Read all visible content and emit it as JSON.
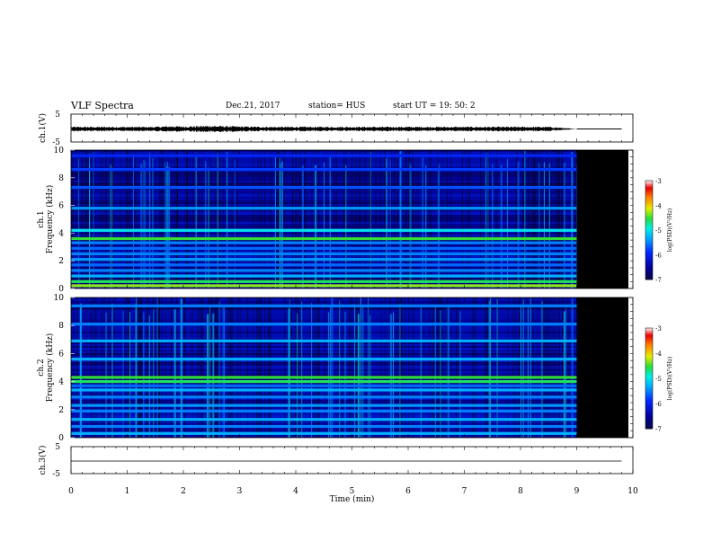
{
  "header": {
    "title": "VLF Spectra",
    "date": "Dec.21, 2017",
    "station": "station= HUS",
    "start": "start  UT =   19: 50: 2"
  },
  "chart_data": [
    {
      "type": "line",
      "panel": "ch1-waveform",
      "title": "",
      "xlabel": "",
      "ylabel": "ch.1(V)",
      "xlim": [
        0,
        10
      ],
      "ylim": [
        -5,
        5
      ],
      "yticks": [
        5,
        -5
      ],
      "series": [
        {
          "x": [
            0,
            0.5,
            1,
            1.5,
            1.8,
            2.0,
            2.3,
            2.5,
            3,
            3.5,
            4,
            4.5,
            5,
            5.5,
            6,
            6.5,
            7,
            7.5,
            8,
            8.5,
            9,
            9.8
          ],
          "amplitude": [
            0.6,
            0.6,
            0.6,
            0.6,
            0.8,
            0.7,
            0.8,
            0.9,
            0.7,
            0.6,
            0.6,
            0.6,
            0.6,
            0.6,
            0.6,
            0.6,
            0.6,
            0.6,
            0.6,
            0.6,
            0,
            0
          ]
        }
      ]
    },
    {
      "type": "heatmap",
      "panel": "ch1-spectrogram",
      "title": "",
      "xlabel": "",
      "ylabel": "ch.1 Frequency (kHz)",
      "xlim": [
        0,
        10
      ],
      "ylim": [
        0,
        10
      ],
      "yticks": [
        0,
        2,
        4,
        6,
        8,
        10
      ],
      "data_end_min": 9,
      "colorbar": {
        "label": "log(PSD)(V²/Hz)",
        "ticks": [
          -3,
          -4,
          -5,
          -6,
          -7
        ],
        "range": [
          -7,
          -3
        ]
      },
      "bands_khz": [
        {
          "f": 0.2,
          "level": -4.3
        },
        {
          "f": 0.5,
          "level": -4.6
        },
        {
          "f": 0.9,
          "level": -5.3
        },
        {
          "f": 1.3,
          "level": -5.5
        },
        {
          "f": 1.7,
          "level": -5.6
        },
        {
          "f": 2.1,
          "level": -5.4
        },
        {
          "f": 2.5,
          "level": -5.5
        },
        {
          "f": 2.9,
          "level": -5.6
        },
        {
          "f": 3.3,
          "level": -5.5
        },
        {
          "f": 3.6,
          "level": -4.5
        },
        {
          "f": 4.2,
          "level": -5.0
        },
        {
          "f": 5.8,
          "level": -5.4
        },
        {
          "f": 7.3,
          "level": -5.7
        },
        {
          "f": 8.6,
          "level": -5.8
        },
        {
          "f": 9.6,
          "level": -5.9
        }
      ]
    },
    {
      "type": "heatmap",
      "panel": "ch2-spectrogram",
      "title": "",
      "xlabel": "",
      "ylabel": "ch.2 Frequency (kHz)",
      "xlim": [
        0,
        10
      ],
      "ylim": [
        0,
        10
      ],
      "yticks": [
        0,
        2,
        4,
        6,
        8,
        10
      ],
      "data_end_min": 9,
      "colorbar": {
        "label": "log(PSD)(V²/Hz)",
        "ticks": [
          -3,
          -4,
          -5,
          -6,
          -7
        ],
        "range": [
          -7,
          -3
        ]
      },
      "bands_khz": [
        {
          "f": 0.3,
          "level": -5.3
        },
        {
          "f": 0.8,
          "level": -5.5
        },
        {
          "f": 1.3,
          "level": -5.3
        },
        {
          "f": 1.9,
          "level": -5.5
        },
        {
          "f": 2.3,
          "level": -5.4
        },
        {
          "f": 2.9,
          "level": -5.5
        },
        {
          "f": 3.4,
          "level": -5.3
        },
        {
          "f": 3.7,
          "level": -5.6
        },
        {
          "f": 4.0,
          "level": -4.6
        },
        {
          "f": 4.3,
          "level": -4.5
        },
        {
          "f": 5.6,
          "level": -5.3
        },
        {
          "f": 6.9,
          "level": -5.3
        },
        {
          "f": 8.1,
          "level": -5.5
        },
        {
          "f": 9.4,
          "level": -5.5
        }
      ]
    },
    {
      "type": "line",
      "panel": "ch3-waveform",
      "title": "",
      "xlabel": "Time (min)",
      "ylabel": "ch.3(V)",
      "xlim": [
        0,
        10
      ],
      "ylim": [
        -5,
        5
      ],
      "yticks": [
        5,
        -5
      ],
      "xticks": [
        0,
        1,
        2,
        3,
        4,
        5,
        6,
        7,
        8,
        9,
        10
      ],
      "series": [
        {
          "x": [
            0,
            9.8
          ],
          "y": [
            0,
            0
          ]
        }
      ]
    }
  ]
}
